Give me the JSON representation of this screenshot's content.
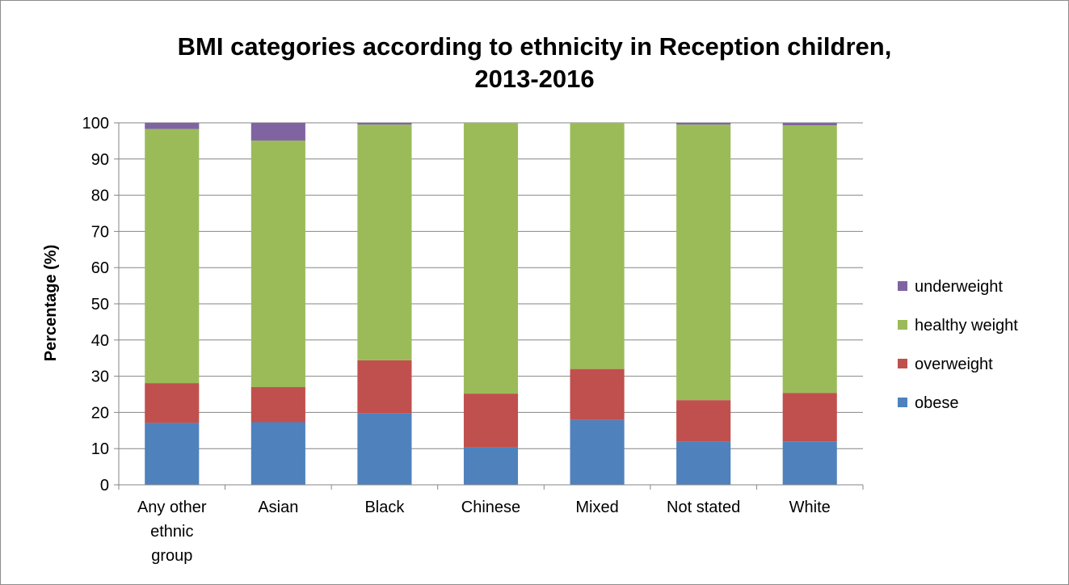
{
  "chart_data": {
    "type": "bar",
    "stacked": true,
    "title_line1": "BMI categories according to ethnicity in Reception children,",
    "title_line2": "2013-2016",
    "xlabel": "",
    "ylabel": "Percentage (%)",
    "ylim": [
      0,
      100
    ],
    "yticks": [
      0,
      10,
      20,
      30,
      40,
      50,
      60,
      70,
      80,
      90,
      100
    ],
    "grid": true,
    "legend_position": "right",
    "categories": [
      [
        "Any other",
        "ethnic",
        "group"
      ],
      [
        "Asian"
      ],
      [
        "Black"
      ],
      [
        "Chinese"
      ],
      [
        "Mixed"
      ],
      [
        "Not stated"
      ],
      [
        "White"
      ]
    ],
    "series": [
      {
        "name": "obese",
        "color": "#4f81bd",
        "values": [
          17.1,
          17.3,
          19.7,
          10.3,
          17.9,
          11.9,
          12.0
        ]
      },
      {
        "name": "overweight",
        "color": "#c0504d",
        "values": [
          11.0,
          9.7,
          14.7,
          14.9,
          14.1,
          11.5,
          13.4
        ]
      },
      {
        "name": "healthy weight",
        "color": "#9bbb59",
        "values": [
          70.2,
          68.1,
          65.1,
          74.8,
          68.0,
          76.1,
          73.9
        ]
      },
      {
        "name": "underweight",
        "color": "#8064a2",
        "values": [
          1.7,
          4.9,
          0.5,
          0.0,
          0.0,
          0.5,
          0.7
        ]
      }
    ],
    "legend_order": [
      "underweight",
      "healthy weight",
      "overweight",
      "obese"
    ]
  }
}
